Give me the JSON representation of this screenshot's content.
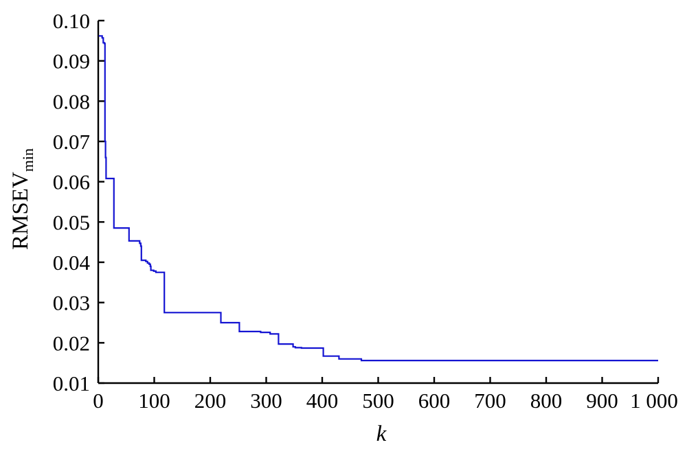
{
  "chart_data": {
    "type": "line",
    "title": "",
    "xlabel": "k",
    "ylabel": "RMSEV",
    "ylabel_subscript": "min",
    "xlim": [
      0,
      1000
    ],
    "ylim": [
      0.01,
      0.1
    ],
    "x_ticks": [
      0,
      100,
      200,
      300,
      400,
      500,
      600,
      700,
      800,
      900,
      1000
    ],
    "x_tick_labels": [
      "0",
      "100",
      "200",
      "300",
      "400",
      "500",
      "600",
      "700",
      "800",
      "900",
      "1 000"
    ],
    "y_ticks": [
      0.01,
      0.02,
      0.03,
      0.04,
      0.05,
      0.06,
      0.07,
      0.08,
      0.09,
      0.1
    ],
    "y_tick_labels": [
      "0.01",
      "0.02",
      "0.03",
      "0.04",
      "0.05",
      "0.06",
      "0.07",
      "0.08",
      "0.09",
      "0.10"
    ],
    "grid": false,
    "legend": "none",
    "line_color": "#1414d2",
    "series": [
      {
        "step": true,
        "x": [
          1,
          7,
          9,
          11,
          12,
          13,
          14,
          27,
          28,
          54,
          55,
          73,
          74,
          76,
          77,
          82,
          85,
          88,
          91,
          93,
          94,
          99,
          103,
          117,
          118,
          218,
          219,
          250,
          252,
          272,
          290,
          297,
          307,
          321,
          322,
          345,
          348,
          352,
          363,
          401,
          402,
          427,
          430,
          468,
          470,
          1000
        ],
        "y": [
          0.0962,
          0.0957,
          0.0945,
          0.0943,
          0.07,
          0.066,
          0.0608,
          0.0608,
          0.0485,
          0.0485,
          0.0453,
          0.0453,
          0.0447,
          0.044,
          0.0405,
          0.0405,
          0.0402,
          0.0398,
          0.0395,
          0.039,
          0.038,
          0.0378,
          0.0375,
          0.0375,
          0.0275,
          0.0275,
          0.025,
          0.025,
          0.0228,
          0.0228,
          0.0226,
          0.0226,
          0.0222,
          0.0222,
          0.0197,
          0.0197,
          0.019,
          0.0188,
          0.0187,
          0.0187,
          0.0167,
          0.0167,
          0.016,
          0.016,
          0.0156,
          0.0156
        ]
      }
    ]
  }
}
